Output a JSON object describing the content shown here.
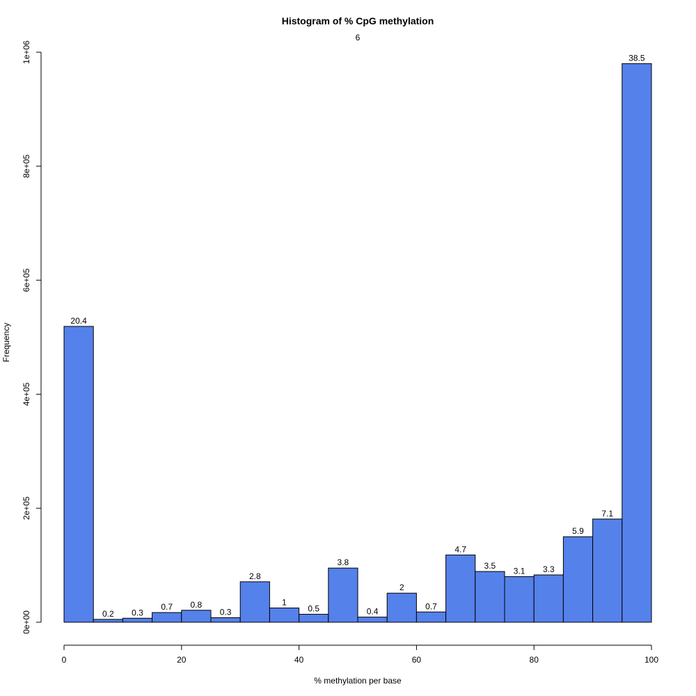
{
  "chart_data": {
    "type": "bar",
    "title": "Histogram of % CpG methylation",
    "subtitle": "6",
    "xlabel": "% methylation per base",
    "ylabel": "Frequency",
    "xlim": [
      0,
      100
    ],
    "ylim": [
      0,
      1000000
    ],
    "x_ticks": [
      0,
      20,
      40,
      60,
      80,
      100
    ],
    "x_tick_labels": [
      "0",
      "20",
      "40",
      "60",
      "80",
      "100"
    ],
    "y_ticks": [
      0,
      200000,
      400000,
      600000,
      800000,
      1000000
    ],
    "y_tick_labels": [
      "0e+00",
      "2e+05",
      "4e+05",
      "6e+05",
      "8e+05",
      "1e+06"
    ],
    "bin_edges": [
      0,
      5,
      10,
      15,
      20,
      25,
      30,
      35,
      40,
      45,
      50,
      55,
      60,
      65,
      70,
      75,
      80,
      85,
      90,
      95,
      100
    ],
    "values": [
      519000,
      5000,
      7000,
      17000,
      21000,
      8000,
      71000,
      25000,
      14000,
      95000,
      9000,
      51000,
      18000,
      118000,
      89000,
      80000,
      83000,
      150000,
      181000,
      980000
    ],
    "bar_labels": [
      "20.4",
      "0.2",
      "0.3",
      "0.7",
      "0.8",
      "0.3",
      "2.8",
      "1",
      "0.5",
      "3.8",
      "0.4",
      "2",
      "0.7",
      "4.7",
      "3.5",
      "3.1",
      "3.3",
      "5.9",
      "7.1",
      "38.5"
    ],
    "bar_color": "#5581ea",
    "bar_stroke": "#000000",
    "grid": false,
    "legend": "none"
  }
}
